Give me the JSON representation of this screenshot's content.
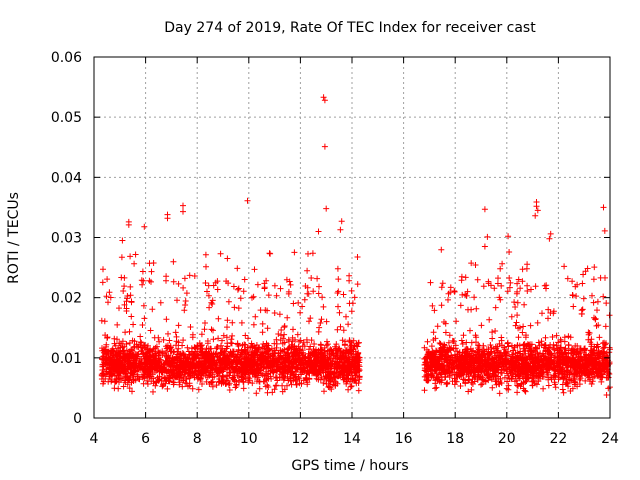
{
  "chart_data": {
    "type": "scatter",
    "title": "Day 274 of 2019, Rate Of TEC Index for receiver cast",
    "xlabel": "GPS time / hours",
    "ylabel": "ROTI / TECUs",
    "xlim": [
      4,
      24
    ],
    "ylim": [
      0,
      0.06
    ],
    "x_ticks": [
      4,
      6,
      8,
      10,
      12,
      14,
      16,
      18,
      20,
      22,
      24
    ],
    "x_tick_labels": [
      "4",
      "6",
      "8",
      "10",
      "12",
      "14",
      "16",
      "18",
      "20",
      "22",
      "24"
    ],
    "y_ticks": [
      0,
      0.01,
      0.02,
      0.03,
      0.04,
      0.05,
      0.06
    ],
    "y_tick_labels": [
      "0",
      "0.01",
      "0.02",
      "0.03",
      "0.04",
      "0.05",
      "0.06"
    ],
    "grid": true,
    "marker": "plus",
    "color": "#ff0000",
    "series": [
      {
        "name": "ROTI",
        "segments": [
          {
            "x_start": 4.3,
            "x_end": 14.3,
            "typical_range": [
              0.003,
              0.02
            ]
          },
          {
            "x_start": 16.8,
            "x_end": 24.0,
            "typical_range": [
              0.003,
              0.02
            ]
          }
        ],
        "gap": [
          14.3,
          16.8
        ],
        "outliers": [
          {
            "x": 12.9,
            "y": 0.0533
          },
          {
            "x": 12.95,
            "y": 0.0528
          },
          {
            "x": 12.95,
            "y": 0.0451
          },
          {
            "x": 9.95,
            "y": 0.0361
          },
          {
            "x": 7.45,
            "y": 0.0353
          },
          {
            "x": 7.45,
            "y": 0.0343
          },
          {
            "x": 6.85,
            "y": 0.0338
          },
          {
            "x": 6.85,
            "y": 0.0332
          },
          {
            "x": 5.35,
            "y": 0.0326
          },
          {
            "x": 5.35,
            "y": 0.0321
          },
          {
            "x": 5.95,
            "y": 0.0318
          },
          {
            "x": 5.1,
            "y": 0.0295
          },
          {
            "x": 13.0,
            "y": 0.0348
          },
          {
            "x": 13.6,
            "y": 0.0327
          },
          {
            "x": 13.55,
            "y": 0.0313
          },
          {
            "x": 12.7,
            "y": 0.031
          },
          {
            "x": 21.15,
            "y": 0.0359
          },
          {
            "x": 21.15,
            "y": 0.0352
          },
          {
            "x": 21.2,
            "y": 0.0345
          },
          {
            "x": 21.1,
            "y": 0.0336
          },
          {
            "x": 19.15,
            "y": 0.0347
          },
          {
            "x": 23.75,
            "y": 0.035
          },
          {
            "x": 23.8,
            "y": 0.0311
          },
          {
            "x": 19.25,
            "y": 0.0301
          },
          {
            "x": 20.05,
            "y": 0.0302
          },
          {
            "x": 21.7,
            "y": 0.0306
          },
          {
            "x": 19.15,
            "y": 0.0285
          },
          {
            "x": 21.65,
            "y": 0.0298
          }
        ]
      }
    ]
  }
}
